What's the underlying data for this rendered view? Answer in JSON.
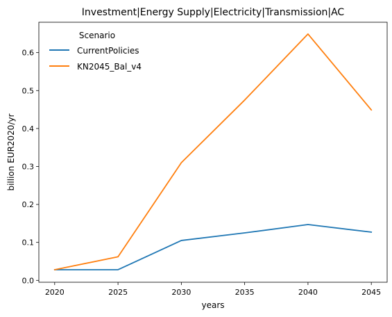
{
  "chart_data": {
    "type": "line",
    "title": "Investment|Energy Supply|Electricity|Transmission|AC",
    "xlabel": "years",
    "ylabel": "billion EUR2020/yr",
    "x": [
      2020,
      2025,
      2030,
      2035,
      2040,
      2045
    ],
    "x_ticks": [
      "2020",
      "2025",
      "2030",
      "2035",
      "2040",
      "2045"
    ],
    "xlim": [
      2018.75,
      2046.25
    ],
    "y_ticks": [
      "0.0",
      "0.1",
      "0.2",
      "0.3",
      "0.4",
      "0.5",
      "0.6"
    ],
    "ylim": [
      -0.005,
      0.68
    ],
    "grid": false,
    "legend": {
      "title": "Scenario",
      "placement": "top-left"
    },
    "series": [
      {
        "name": "CurrentPolicies",
        "color": "#1f77b4",
        "values": [
          0.028,
          0.028,
          0.105,
          0.125,
          0.147,
          0.127
        ]
      },
      {
        "name": "KN2045_Bal_v4",
        "color": "#ff7f0e",
        "values": [
          0.028,
          0.062,
          0.31,
          0.475,
          0.649,
          0.449
        ]
      }
    ]
  }
}
